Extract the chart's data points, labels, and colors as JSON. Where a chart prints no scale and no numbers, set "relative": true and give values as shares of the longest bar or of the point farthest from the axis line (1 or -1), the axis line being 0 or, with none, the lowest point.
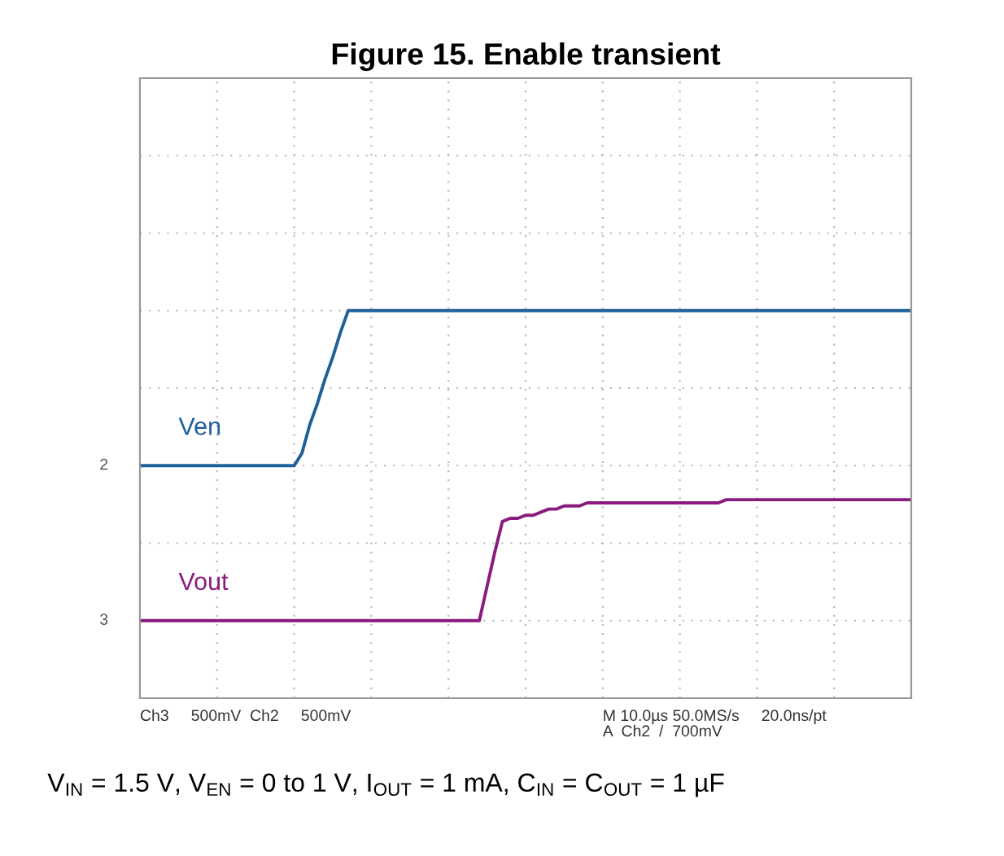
{
  "chart_data": {
    "type": "line",
    "title": "Figure 15. Enable transient",
    "relative": true,
    "grid": true,
    "legend": false,
    "categories": [
      null,
      null,
      null,
      null,
      null,
      null,
      null,
      null,
      null,
      null,
      null,
      null,
      null,
      null,
      null,
      null,
      null,
      null,
      null,
      null,
      null,
      null,
      null,
      null,
      null,
      null,
      null,
      null,
      null,
      null,
      null,
      null,
      null,
      null,
      null,
      null,
      null,
      null,
      null,
      null,
      null,
      null,
      null,
      null,
      null,
      null,
      null,
      null,
      null,
      null,
      null,
      null,
      null,
      null,
      null,
      null,
      null,
      null,
      null,
      null,
      null,
      null,
      null,
      null,
      null,
      null,
      null,
      null,
      null,
      null,
      null,
      null,
      null,
      null,
      null,
      null,
      null,
      null,
      null,
      null,
      null,
      null,
      null,
      null,
      null,
      null,
      null,
      null,
      null,
      null,
      null,
      null,
      null,
      null,
      null,
      null,
      null,
      null,
      null,
      null,
      null
    ],
    "series": [
      {
        "name": "Ven",
        "color": "#1f5f9a",
        "values": [
          0.5,
          0.5,
          0.5,
          0.5,
          0.5,
          0.5,
          0.5,
          0.5,
          0.5,
          0.5,
          0.5,
          0.5,
          0.5,
          0.5,
          0.5,
          0.5,
          0.5,
          0.5,
          0.5,
          0.5,
          0.5,
          0.54,
          0.63,
          0.7,
          0.78,
          0.85,
          0.93,
          1,
          1,
          1,
          1,
          1,
          1,
          1,
          1,
          1,
          1,
          1,
          1,
          1,
          1,
          1,
          1,
          1,
          1,
          1,
          1,
          1,
          1,
          1,
          1,
          1,
          1,
          1,
          1,
          1,
          1,
          1,
          1,
          1,
          1,
          1,
          1,
          1,
          1,
          1,
          1,
          1,
          1,
          1,
          1,
          1,
          1,
          1,
          1,
          1,
          1,
          1,
          1,
          1,
          1,
          1,
          1,
          1,
          1,
          1,
          1,
          1,
          1,
          1,
          1,
          1,
          1,
          1,
          1,
          1,
          1,
          1,
          1,
          1,
          1
        ]
      },
      {
        "name": "Vout",
        "color": "#8b1a7e",
        "values": [
          0,
          0,
          0,
          0,
          0,
          0,
          0,
          0,
          0,
          0,
          0,
          0,
          0,
          0,
          0,
          0,
          0,
          0,
          0,
          0,
          0,
          0,
          0,
          0,
          0,
          0,
          0,
          0,
          0,
          0,
          0,
          0,
          0,
          0,
          0,
          0,
          0,
          0,
          0,
          0,
          0,
          0,
          0,
          0,
          0,
          0.11,
          0.22,
          0.32,
          0.33,
          0.33,
          0.34,
          0.34,
          0.35,
          0.36,
          0.36,
          0.37,
          0.37,
          0.37,
          0.38,
          0.38,
          0.38,
          0.38,
          0.38,
          0.38,
          0.38,
          0.38,
          0.38,
          0.38,
          0.38,
          0.38,
          0.38,
          0.38,
          0.38,
          0.38,
          0.38,
          0.38,
          0.39,
          0.39,
          0.39,
          0.39,
          0.39,
          0.39,
          0.39,
          0.39,
          0.39,
          0.39,
          0.39,
          0.39,
          0.39,
          0.39,
          0.39,
          0.39,
          0.39,
          0.39,
          0.39,
          0.39,
          0.39,
          0.39,
          0.39,
          0.39,
          0.39
        ]
      }
    ],
    "annotations": [
      "2",
      "3",
      "Ch3     500mV  Ch2     500mV",
      "M 10.0µs 50.0MS/s     20.0ns/pt",
      "A  Ch2  /  700mV",
      "V$_{IN}$ = 1.5 V, V$_{EN}$ = 0 to 1 V, I$_{OUT}$ = 1 mA, C$_{IN}$ = C$_{OUT}$ = 1 µF"
    ]
  }
}
